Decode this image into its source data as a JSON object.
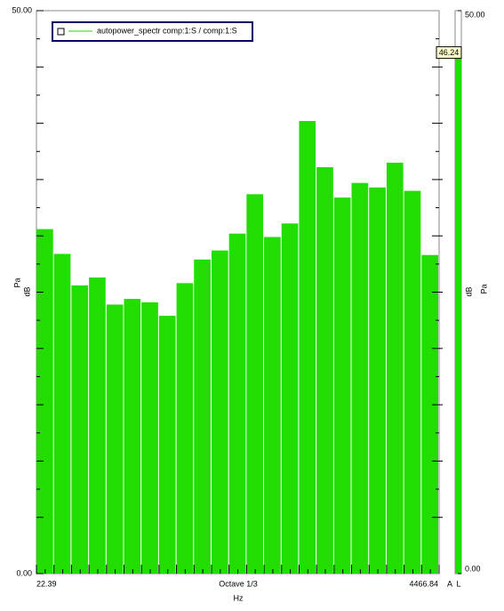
{
  "chart_data": [
    {
      "type": "bar",
      "legend": "autopower_spectr comp:1:S / comp:1:S",
      "y_label": "dB",
      "y_unit": "Pa",
      "x_label": "Octave 1/3",
      "x_unit": "Hz",
      "x_scale": "log",
      "xlim": [
        22.39,
        4466.84
      ],
      "xticks": [
        22.39,
        4466.84
      ],
      "ylim": [
        0,
        50
      ],
      "yticks": [
        {
          "value": 0,
          "label": "0.00"
        },
        {
          "value": 50,
          "label": "50.00"
        }
      ],
      "color": "#22dd00",
      "values": [
        30.6,
        28.4,
        25.6,
        26.3,
        23.9,
        24.4,
        24.1,
        22.9,
        25.8,
        27.9,
        28.7,
        30.2,
        33.7,
        29.9,
        31.1,
        40.2,
        36.1,
        33.4,
        34.7,
        34.3,
        36.5,
        34.0,
        28.3
      ]
    },
    {
      "type": "meter",
      "value": 46.24,
      "labels": [
        "A",
        "L"
      ],
      "color": "#22dd00",
      "ylim": [
        0,
        50
      ],
      "yticks": [
        {
          "value": 0,
          "label": "0.00"
        },
        {
          "value": 50,
          "label": "50.00"
        }
      ]
    }
  ]
}
